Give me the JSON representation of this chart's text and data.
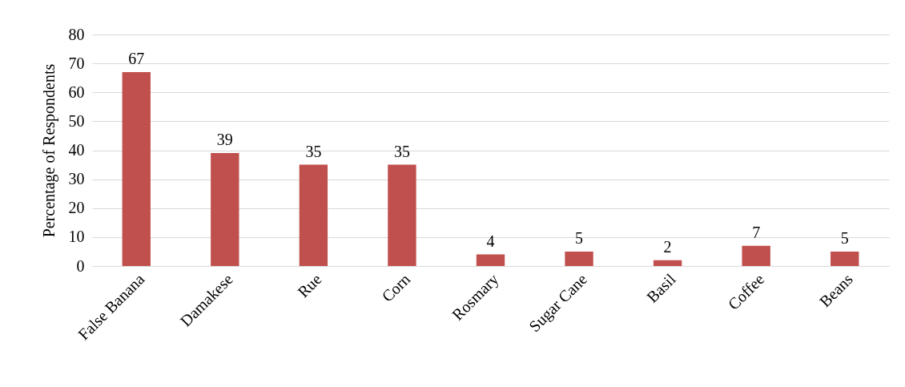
{
  "chart_data": {
    "type": "bar",
    "ylabel": "Percentage of Respondents",
    "categories": [
      "False Banana",
      "Damakese",
      "Rue",
      "Corn",
      "Rosmary",
      "Sugar Cane",
      "Basil",
      "Coffee",
      "Beans"
    ],
    "values": [
      67,
      39,
      35,
      35,
      4,
      5,
      2,
      7,
      5
    ],
    "color": "#c0504d",
    "ylim": [
      0,
      80
    ],
    "yticks": [
      0,
      10,
      20,
      30,
      40,
      50,
      60,
      70,
      80
    ],
    "grid": "y",
    "data_labels": true
  }
}
